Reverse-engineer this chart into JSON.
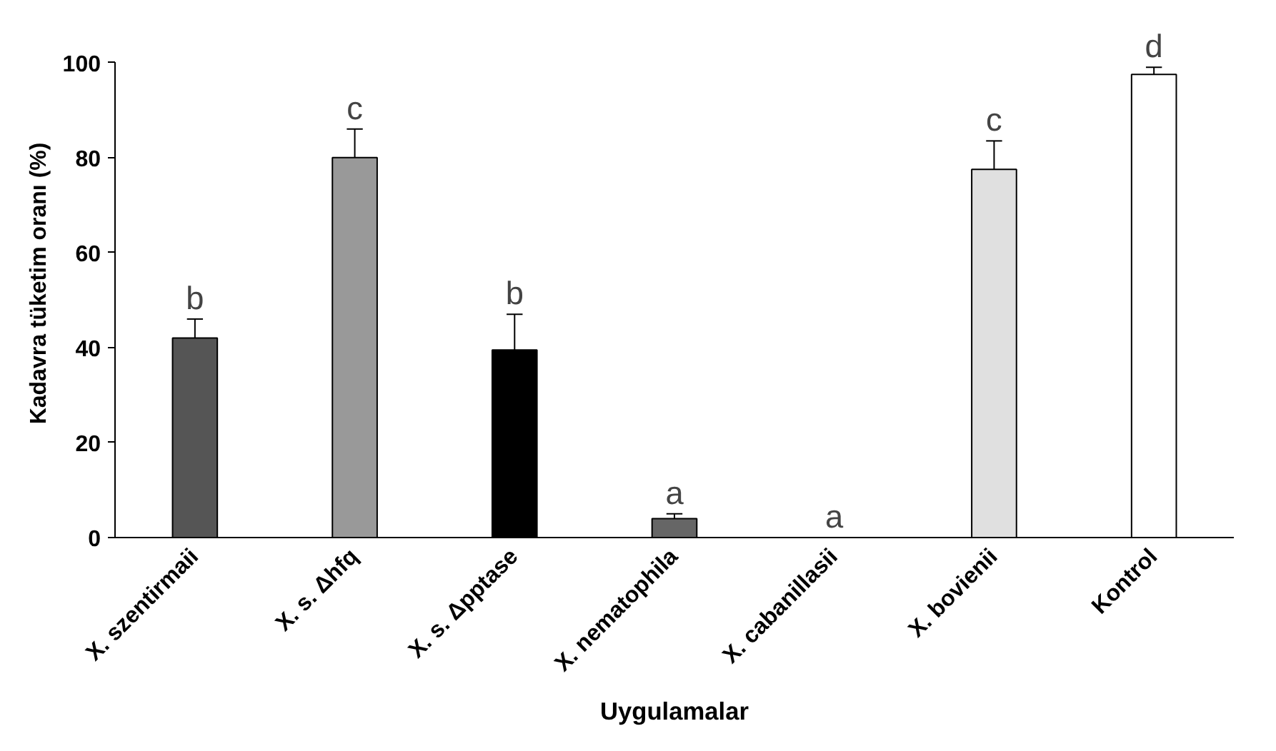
{
  "chart_data": {
    "type": "bar",
    "xlabel": "Uygulamalar",
    "ylabel": "Kadavra tüketim oranı (%)",
    "categories": [
      "X. szentirmaii",
      "X. s. Δhfq",
      "X. s. Δpptase",
      "X. nematophila",
      "X. cabanillasii",
      "X. bovienii",
      "Kontrol"
    ],
    "values": [
      42,
      80,
      39.5,
      4,
      0,
      77.5,
      97.5
    ],
    "colors": [
      "#555555",
      "#999999",
      "#000000",
      "#666666",
      "#000000",
      "#e0e0e0",
      "#ffffff"
    ],
    "errors": [
      4,
      6,
      7.5,
      1,
      0,
      6,
      1.5
    ],
    "ylim": [
      0,
      100
    ],
    "yticks": [
      0,
      20,
      40,
      60,
      80,
      100
    ],
    "grid": false,
    "annotations": [
      {
        "text": "b",
        "x": "X. szentirmaii",
        "y": 46
      },
      {
        "text": "c",
        "x": "X. s. Δhfq",
        "y": 86
      },
      {
        "text": "b",
        "x": "X. s. Δpptase",
        "y": 47
      },
      {
        "text": "a",
        "x": "X. nematophila",
        "y": 5
      },
      {
        "text": "a",
        "x": "X. cabanillasii",
        "y": 0
      },
      {
        "text": "c",
        "x": "X. bovienii",
        "y": 83.5
      },
      {
        "text": "d",
        "x": "Kontrol",
        "y": 99
      }
    ]
  }
}
